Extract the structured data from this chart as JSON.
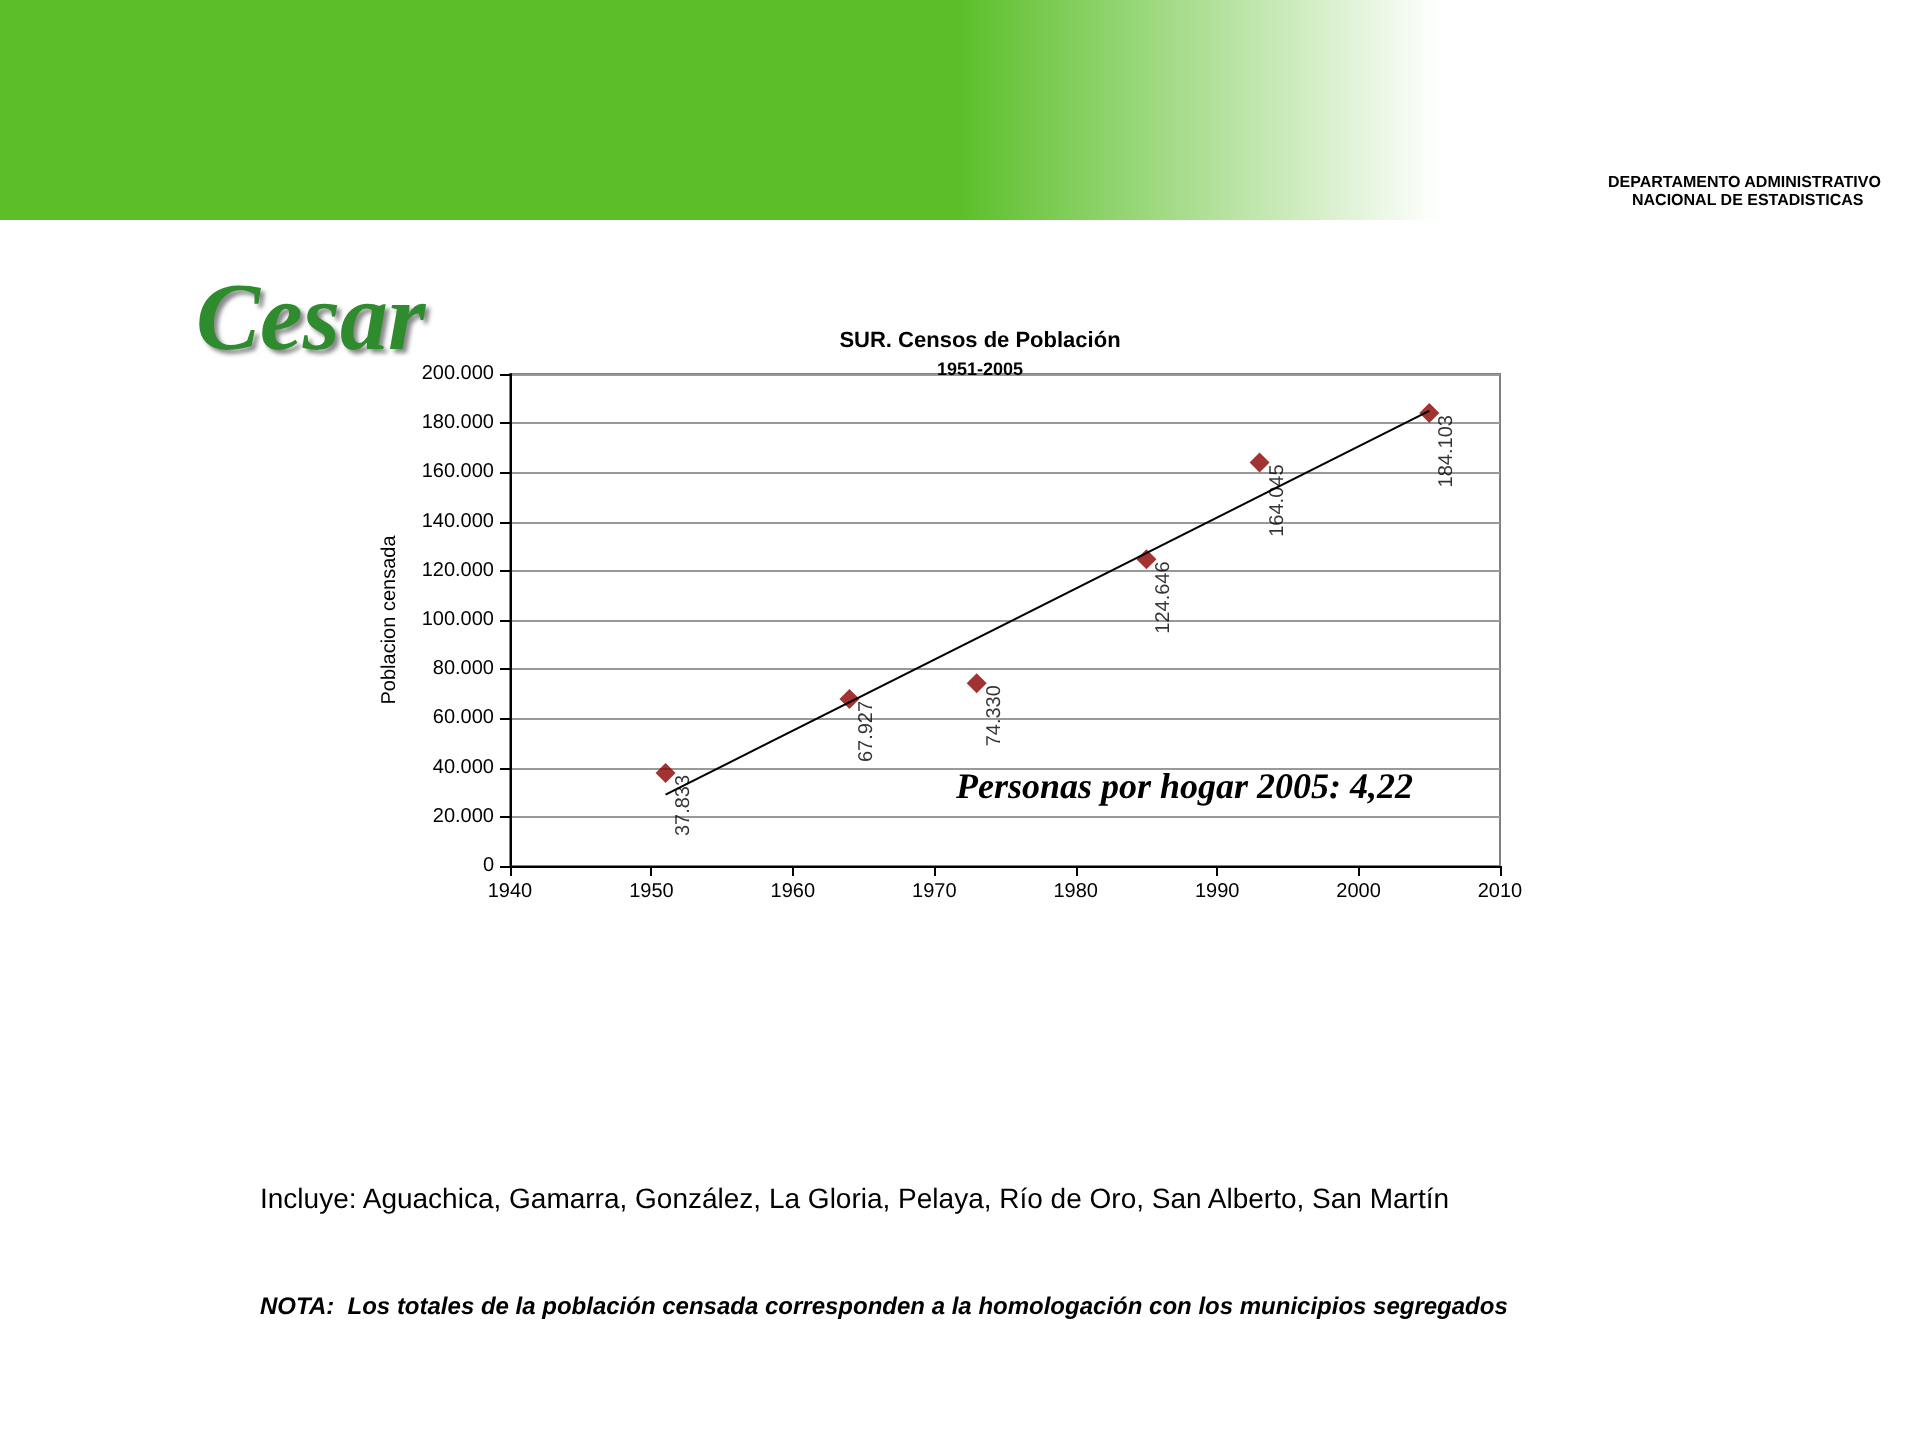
{
  "chart_data": {
    "type": "scatter",
    "title": "SUR. Censos de Población",
    "subtitle": "1951-2005",
    "ylabel": "Poblacion censada",
    "annotations": [
      "Cesar",
      "Personas por hogar 2005: 4,22",
      "Incluye: Aguachica, Gamarra, González, La Gloria, Pelaya, Río de Oro, San Alberto, San Martín",
      "NOTA:  Los totales de la población censada corresponden a la homologación con los municipios segregados",
      "DEPARTAMENTO ADMINISTRATIVO",
      "NACIONAL DE ESTADISTICAS"
    ],
    "series": [
      {
        "color": "#8b0000",
        "marker": "diamond",
        "x": [
          1951,
          1964,
          1973,
          1985,
          1993,
          2005
        ],
        "values": [
          37833,
          67927,
          74330,
          124646,
          164045,
          184103
        ],
        "value_labels": [
          "37.833",
          "67.927",
          "74.330",
          "124.646",
          "164.045",
          "184.103"
        ]
      },
      {
        "type": "line",
        "color": "#000000",
        "marker": "none",
        "line_style": "solid",
        "x": [
          1951,
          2005
        ],
        "values": [
          29000,
          185000
        ]
      }
    ],
    "xlim": [
      1940,
      2010
    ],
    "xticks": [
      1940,
      1950,
      1960,
      1970,
      1980,
      1990,
      2000,
      2010
    ],
    "ylim": [
      0,
      200000
    ],
    "yticks": [
      0,
      {
        "value": 20000,
        "label": "20.000"
      },
      {
        "value": 40000,
        "label": "40.000"
      },
      {
        "value": 60000,
        "label": "60.000"
      },
      {
        "value": 80000,
        "label": "80.000"
      },
      {
        "value": 100000,
        "label": "100.000"
      },
      {
        "value": 120000,
        "label": "120.000"
      },
      {
        "value": 140000,
        "label": "140.000"
      },
      {
        "value": 160000,
        "label": "160.000"
      },
      {
        "value": 180000,
        "label": "180.000"
      },
      {
        "value": 200000,
        "label": "200.000"
      }
    ],
    "grid": "y"
  }
}
